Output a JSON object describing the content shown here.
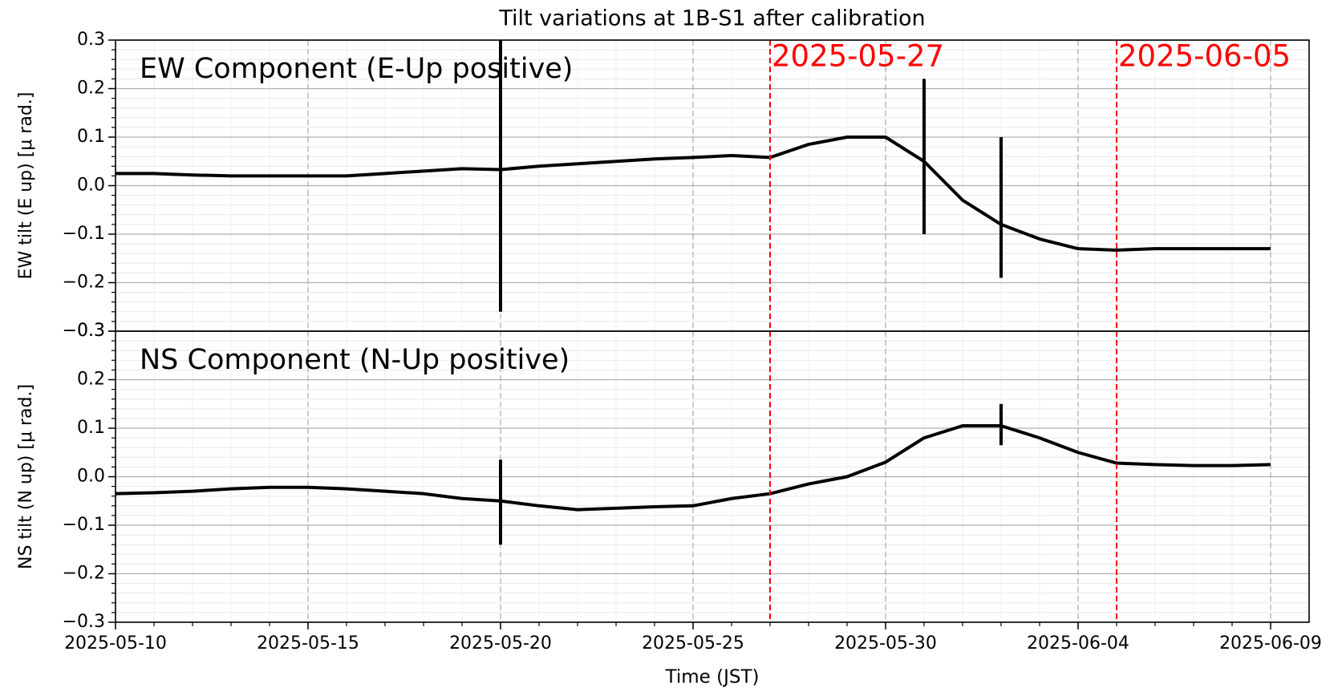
{
  "title": "Tilt variations at 1B-S1 after calibration",
  "xlabel": "Time (JST)",
  "chart_data": [
    {
      "type": "line",
      "annotation": "EW Component (E-Up positive)",
      "ylabel": "EW tilt (E up) [μ rad.]",
      "x": [
        "2025-05-10",
        "2025-05-11",
        "2025-05-12",
        "2025-05-13",
        "2025-05-14",
        "2025-05-15",
        "2025-05-16",
        "2025-05-17",
        "2025-05-18",
        "2025-05-19",
        "2025-05-20",
        "2025-05-21",
        "2025-05-22",
        "2025-05-23",
        "2025-05-24",
        "2025-05-25",
        "2025-05-26",
        "2025-05-27",
        "2025-05-28",
        "2025-05-29",
        "2025-05-30",
        "2025-05-31",
        "2025-06-01",
        "2025-06-02",
        "2025-06-03",
        "2025-06-04",
        "2025-06-05",
        "2025-06-06",
        "2025-06-07",
        "2025-06-08",
        "2025-06-09"
      ],
      "series": [
        {
          "name": "EW",
          "color": "#000000",
          "values": [
            0.025,
            0.025,
            0.022,
            0.02,
            0.02,
            0.02,
            0.02,
            0.025,
            0.03,
            0.035,
            0.033,
            0.04,
            0.045,
            0.05,
            0.055,
            0.058,
            0.062,
            0.058,
            0.085,
            0.1,
            0.1,
            0.05,
            -0.03,
            -0.08,
            -0.11,
            -0.13,
            -0.133,
            -0.13,
            -0.13,
            -0.13,
            -0.13
          ]
        }
      ],
      "spikes": [
        {
          "x": "2025-05-20",
          "low": -0.26,
          "high": 0.3
        },
        {
          "x": "2025-05-31",
          "low": -0.1,
          "high": 0.22
        },
        {
          "x": "2025-06-02",
          "low": -0.19,
          "high": 0.1
        }
      ],
      "vlines": [
        "2025-05-27",
        "2025-06-05"
      ],
      "vline_labels": [
        "2025-05-27",
        "2025-06-05"
      ],
      "vline_color": "#ff0000",
      "xlim": [
        "2025-05-10",
        "2025-06-10"
      ],
      "xticks": [
        "2025-05-10",
        "2025-05-15",
        "2025-05-20",
        "2025-05-25",
        "2025-05-30",
        "2025-06-04",
        "2025-06-09"
      ],
      "ylim": [
        -0.3,
        0.3
      ],
      "yticks": [
        {
          "value": -0.3,
          "label": "−0.3"
        },
        {
          "value": -0.2,
          "label": "−0.2"
        },
        {
          "value": -0.1,
          "label": "−0.1"
        },
        {
          "value": 0,
          "label": "0.0"
        },
        {
          "value": 0.1,
          "label": "0.1"
        },
        {
          "value": 0.2,
          "label": "0.2"
        },
        {
          "value": 0.3,
          "label": "0.3"
        }
      ],
      "grid": true
    },
    {
      "type": "line",
      "annotation": "NS Component (N-Up positive)",
      "ylabel": "NS tilt (N up) [μ rad.]",
      "x": [
        "2025-05-10",
        "2025-05-11",
        "2025-05-12",
        "2025-05-13",
        "2025-05-14",
        "2025-05-15",
        "2025-05-16",
        "2025-05-17",
        "2025-05-18",
        "2025-05-19",
        "2025-05-20",
        "2025-05-21",
        "2025-05-22",
        "2025-05-23",
        "2025-05-24",
        "2025-05-25",
        "2025-05-26",
        "2025-05-27",
        "2025-05-28",
        "2025-05-29",
        "2025-05-30",
        "2025-05-31",
        "2025-06-01",
        "2025-06-02",
        "2025-06-03",
        "2025-06-04",
        "2025-06-05",
        "2025-06-06",
        "2025-06-07",
        "2025-06-08",
        "2025-06-09"
      ],
      "series": [
        {
          "name": "NS",
          "color": "#000000",
          "values": [
            -0.035,
            -0.033,
            -0.03,
            -0.025,
            -0.022,
            -0.022,
            -0.025,
            -0.03,
            -0.035,
            -0.045,
            -0.05,
            -0.06,
            -0.068,
            -0.065,
            -0.062,
            -0.06,
            -0.045,
            -0.035,
            -0.015,
            0.0,
            0.03,
            0.08,
            0.105,
            0.105,
            0.08,
            0.05,
            0.028,
            0.025,
            0.023,
            0.023,
            0.025
          ]
        }
      ],
      "spikes": [
        {
          "x": "2025-05-20",
          "low": -0.14,
          "high": 0.035
        },
        {
          "x": "2025-06-02",
          "low": 0.065,
          "high": 0.15
        }
      ],
      "vlines": [
        "2025-05-27",
        "2025-06-05"
      ],
      "vline_color": "#ff0000",
      "xlim": [
        "2025-05-10",
        "2025-06-10"
      ],
      "xticks": [
        {
          "value": "2025-05-10",
          "label": "2025-05-10"
        },
        {
          "value": "2025-05-15",
          "label": "2025-05-15"
        },
        {
          "value": "2025-05-20",
          "label": "2025-05-20"
        },
        {
          "value": "2025-05-25",
          "label": "2025-05-25"
        },
        {
          "value": "2025-05-30",
          "label": "2025-05-30"
        },
        {
          "value": "2025-06-04",
          "label": "2025-06-04"
        },
        {
          "value": "2025-06-09",
          "label": "2025-06-09"
        }
      ],
      "ylim": [
        -0.3,
        0.3
      ],
      "yticks": [
        {
          "value": -0.3,
          "label": "−0.3"
        },
        {
          "value": -0.2,
          "label": "−0.2"
        },
        {
          "value": -0.1,
          "label": "−0.1"
        },
        {
          "value": 0,
          "label": "0.0"
        },
        {
          "value": 0.1,
          "label": "0.1"
        },
        {
          "value": 0.2,
          "label": "0.2"
        },
        {
          "value": 0.3,
          "label": "0.3"
        }
      ],
      "grid": true
    }
  ]
}
